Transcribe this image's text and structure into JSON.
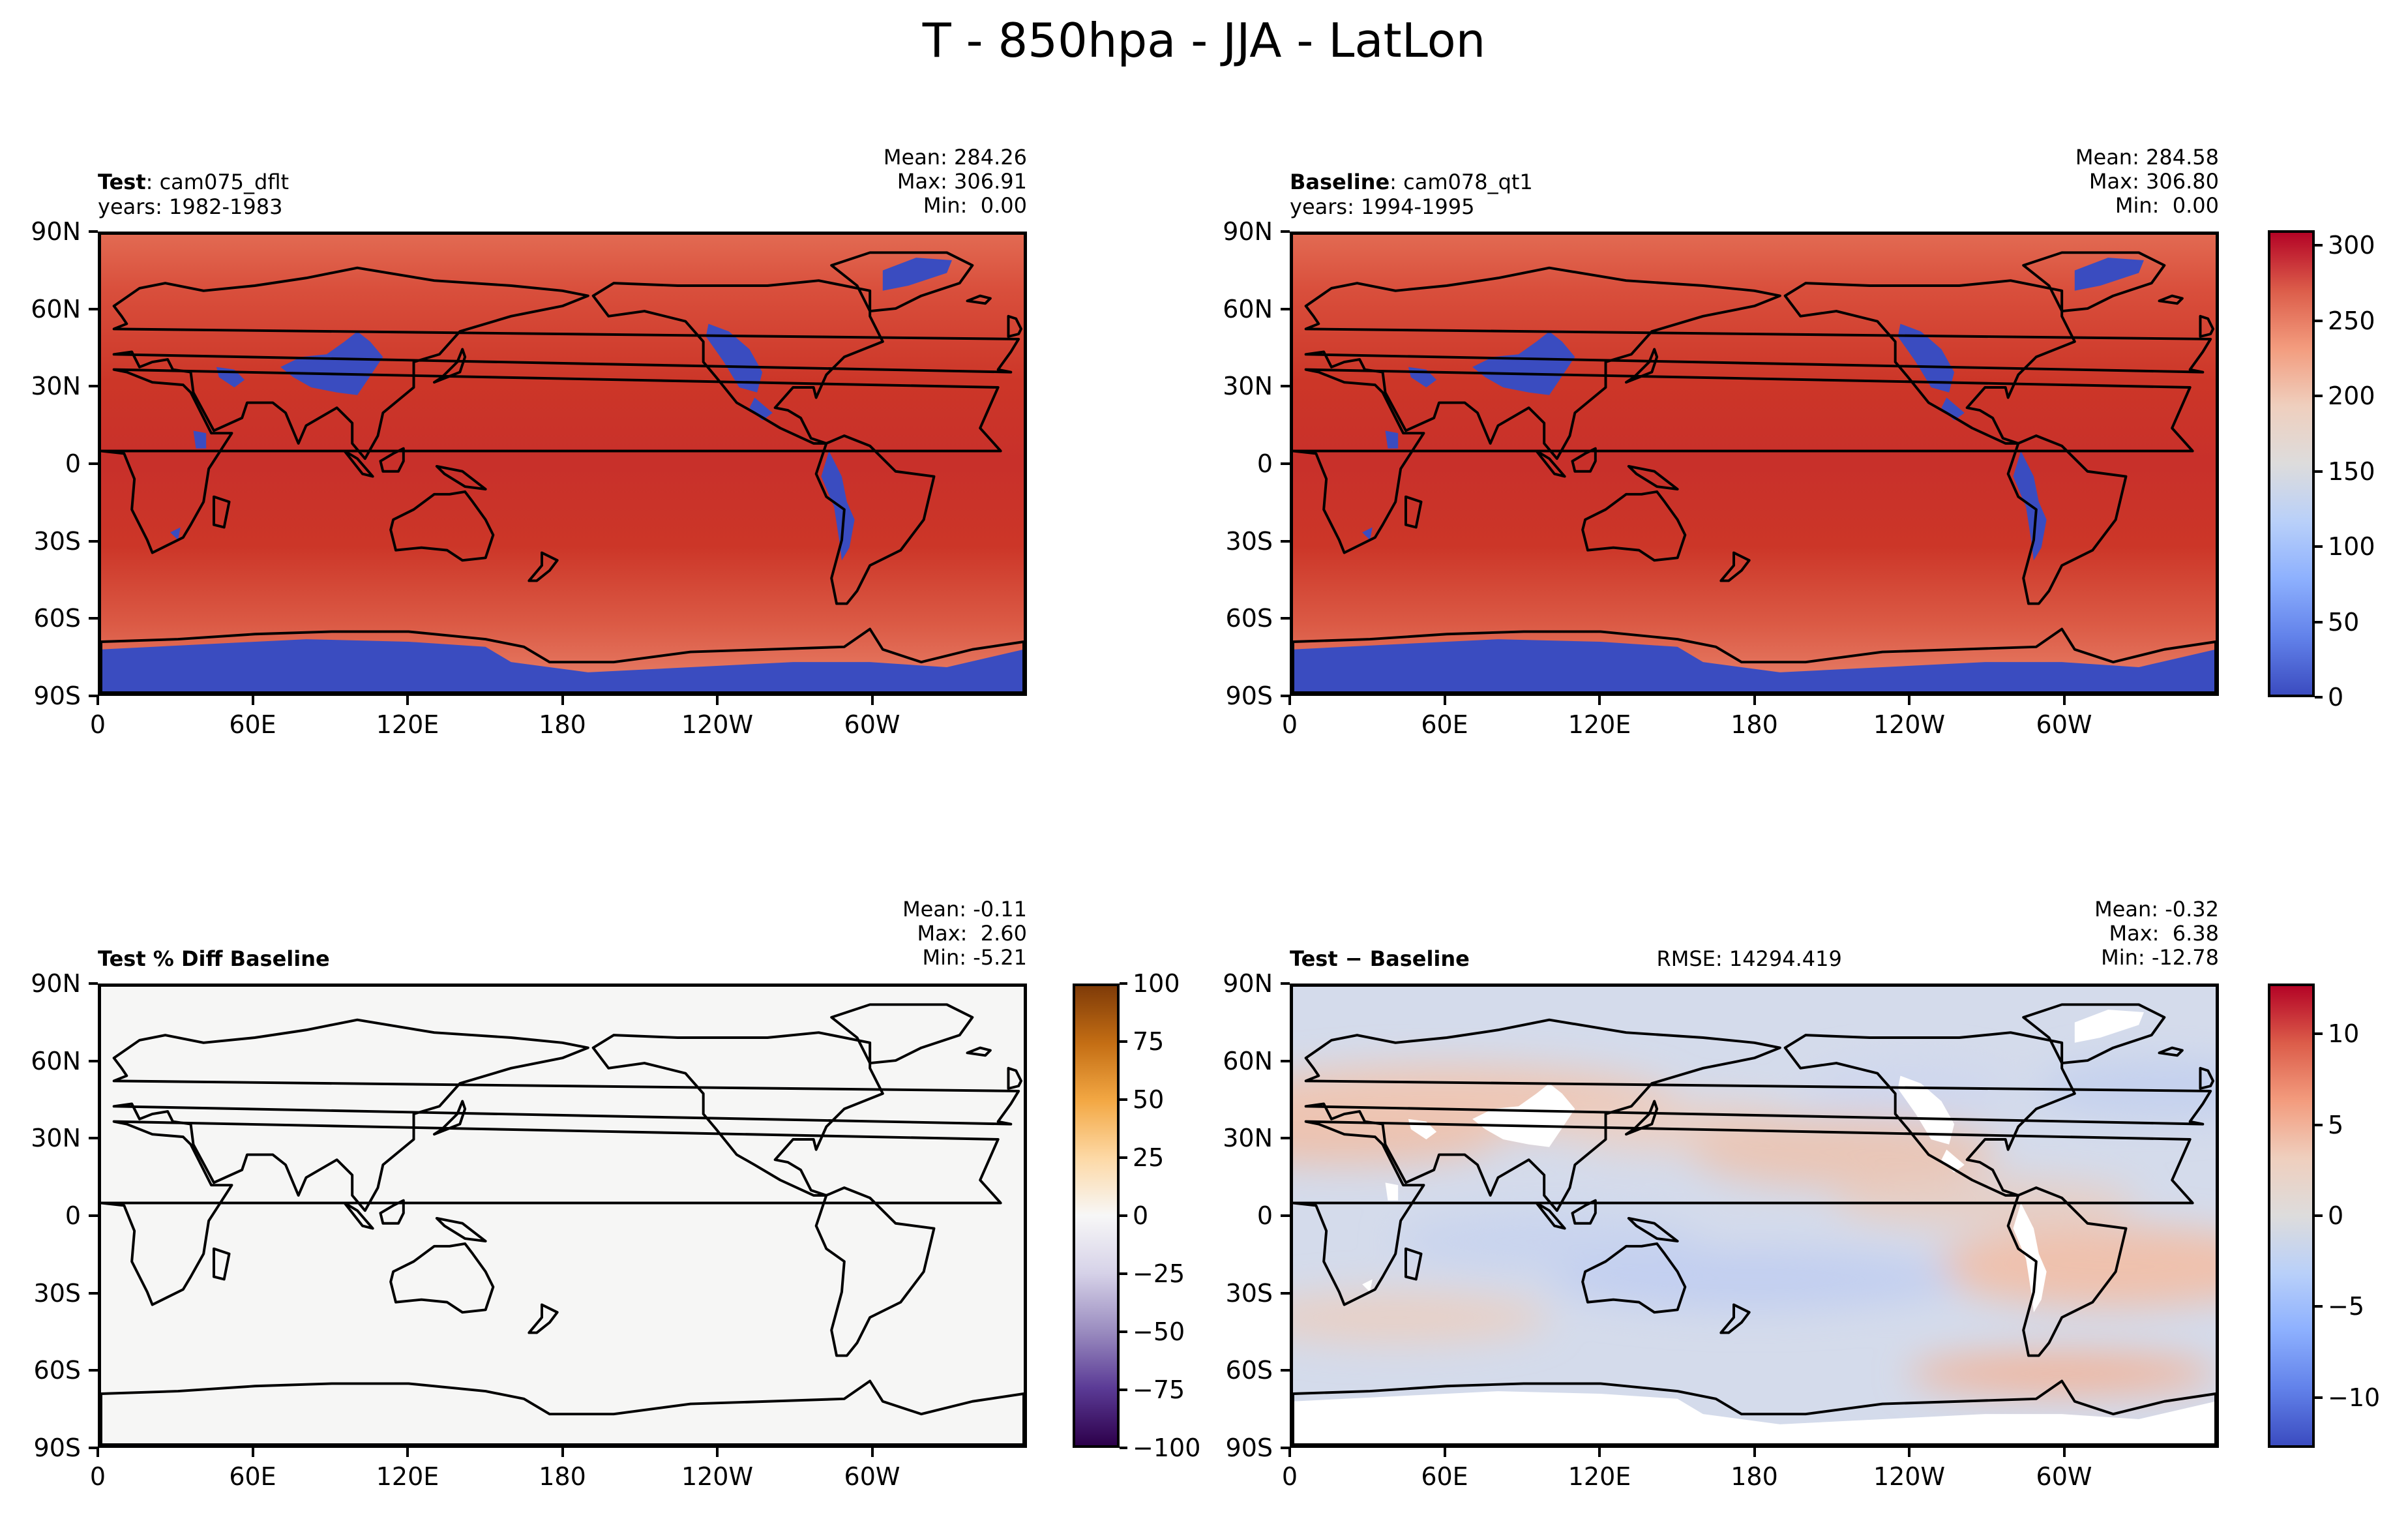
{
  "figure": {
    "title": "T - 850hpa - JJA - LatLon"
  },
  "chart_data": [
    {
      "type": "heatmap",
      "panel": "top-left",
      "title_bold": "Test",
      "title_rest": ": cam075_dflt",
      "subtitle": "years: 1982-1983",
      "stats": [
        "Mean: 284.26",
        "Max: 306.91",
        "Min:  0.00"
      ],
      "x_ticks": [
        "0",
        "60E",
        "120E",
        "180",
        "120W",
        "60W"
      ],
      "y_ticks": [
        "90N",
        "60N",
        "30N",
        "0",
        "30S",
        "60S",
        "90S"
      ],
      "field": "absolute",
      "colormap": "coolwarm"
    },
    {
      "type": "heatmap",
      "panel": "top-right",
      "title_bold": "Baseline",
      "title_rest": ": cam078_qt1",
      "subtitle": "years: 1994-1995",
      "stats": [
        "Mean: 284.58",
        "Max: 306.80",
        "Min:  0.00"
      ],
      "x_ticks": [
        "0",
        "60E",
        "120E",
        "180",
        "120W",
        "60W"
      ],
      "y_ticks": [
        "90N",
        "60N",
        "30N",
        "0",
        "30S",
        "60S",
        "90S"
      ],
      "field": "absolute",
      "colormap": "coolwarm",
      "colorbar": {
        "range": [
          0,
          310
        ],
        "ticks": [
          300,
          250,
          200,
          150,
          100,
          50,
          0
        ]
      }
    },
    {
      "type": "heatmap",
      "panel": "bottom-left",
      "title_bold": "Test % Diff Baseline",
      "stats": [
        "Mean: -0.11",
        "Max:  2.60",
        "Min: -5.21"
      ],
      "x_ticks": [
        "0",
        "60E",
        "120E",
        "180",
        "120W",
        "60W"
      ],
      "y_ticks": [
        "90N",
        "60N",
        "30N",
        "0",
        "30S",
        "60S",
        "90S"
      ],
      "field": "percent-diff",
      "colormap": "PuOr",
      "colorbar": {
        "range": [
          -100,
          100
        ],
        "ticks": [
          100,
          75,
          50,
          25,
          0,
          -25,
          -50,
          -75,
          -100
        ],
        "tick_labels": [
          "100",
          "75",
          "50",
          "25",
          "0",
          "−25",
          "−50",
          "−75",
          "−100"
        ]
      }
    },
    {
      "type": "heatmap",
      "panel": "bottom-right",
      "title_bold": "Test − Baseline",
      "rmse": "RMSE: 14294.419",
      "stats": [
        "Mean: -0.32",
        "Max:  6.38",
        "Min: -12.78"
      ],
      "x_ticks": [
        "0",
        "60E",
        "120E",
        "180",
        "120W",
        "60W"
      ],
      "y_ticks": [
        "90N",
        "60N",
        "30N",
        "0",
        "30S",
        "60S",
        "90S"
      ],
      "field": "difference",
      "colormap": "coolwarm",
      "colorbar": {
        "range": [
          -12.78,
          12.78
        ],
        "ticks": [
          10,
          5,
          0,
          -5,
          -10
        ],
        "tick_labels": [
          "10",
          "5",
          "0",
          "−5",
          "−10"
        ]
      }
    }
  ],
  "colors": {
    "warm": "#d24434",
    "warm_light": "#e06c52",
    "cold": "#3a4cc0",
    "neutral_light": "#f7f7f7"
  }
}
